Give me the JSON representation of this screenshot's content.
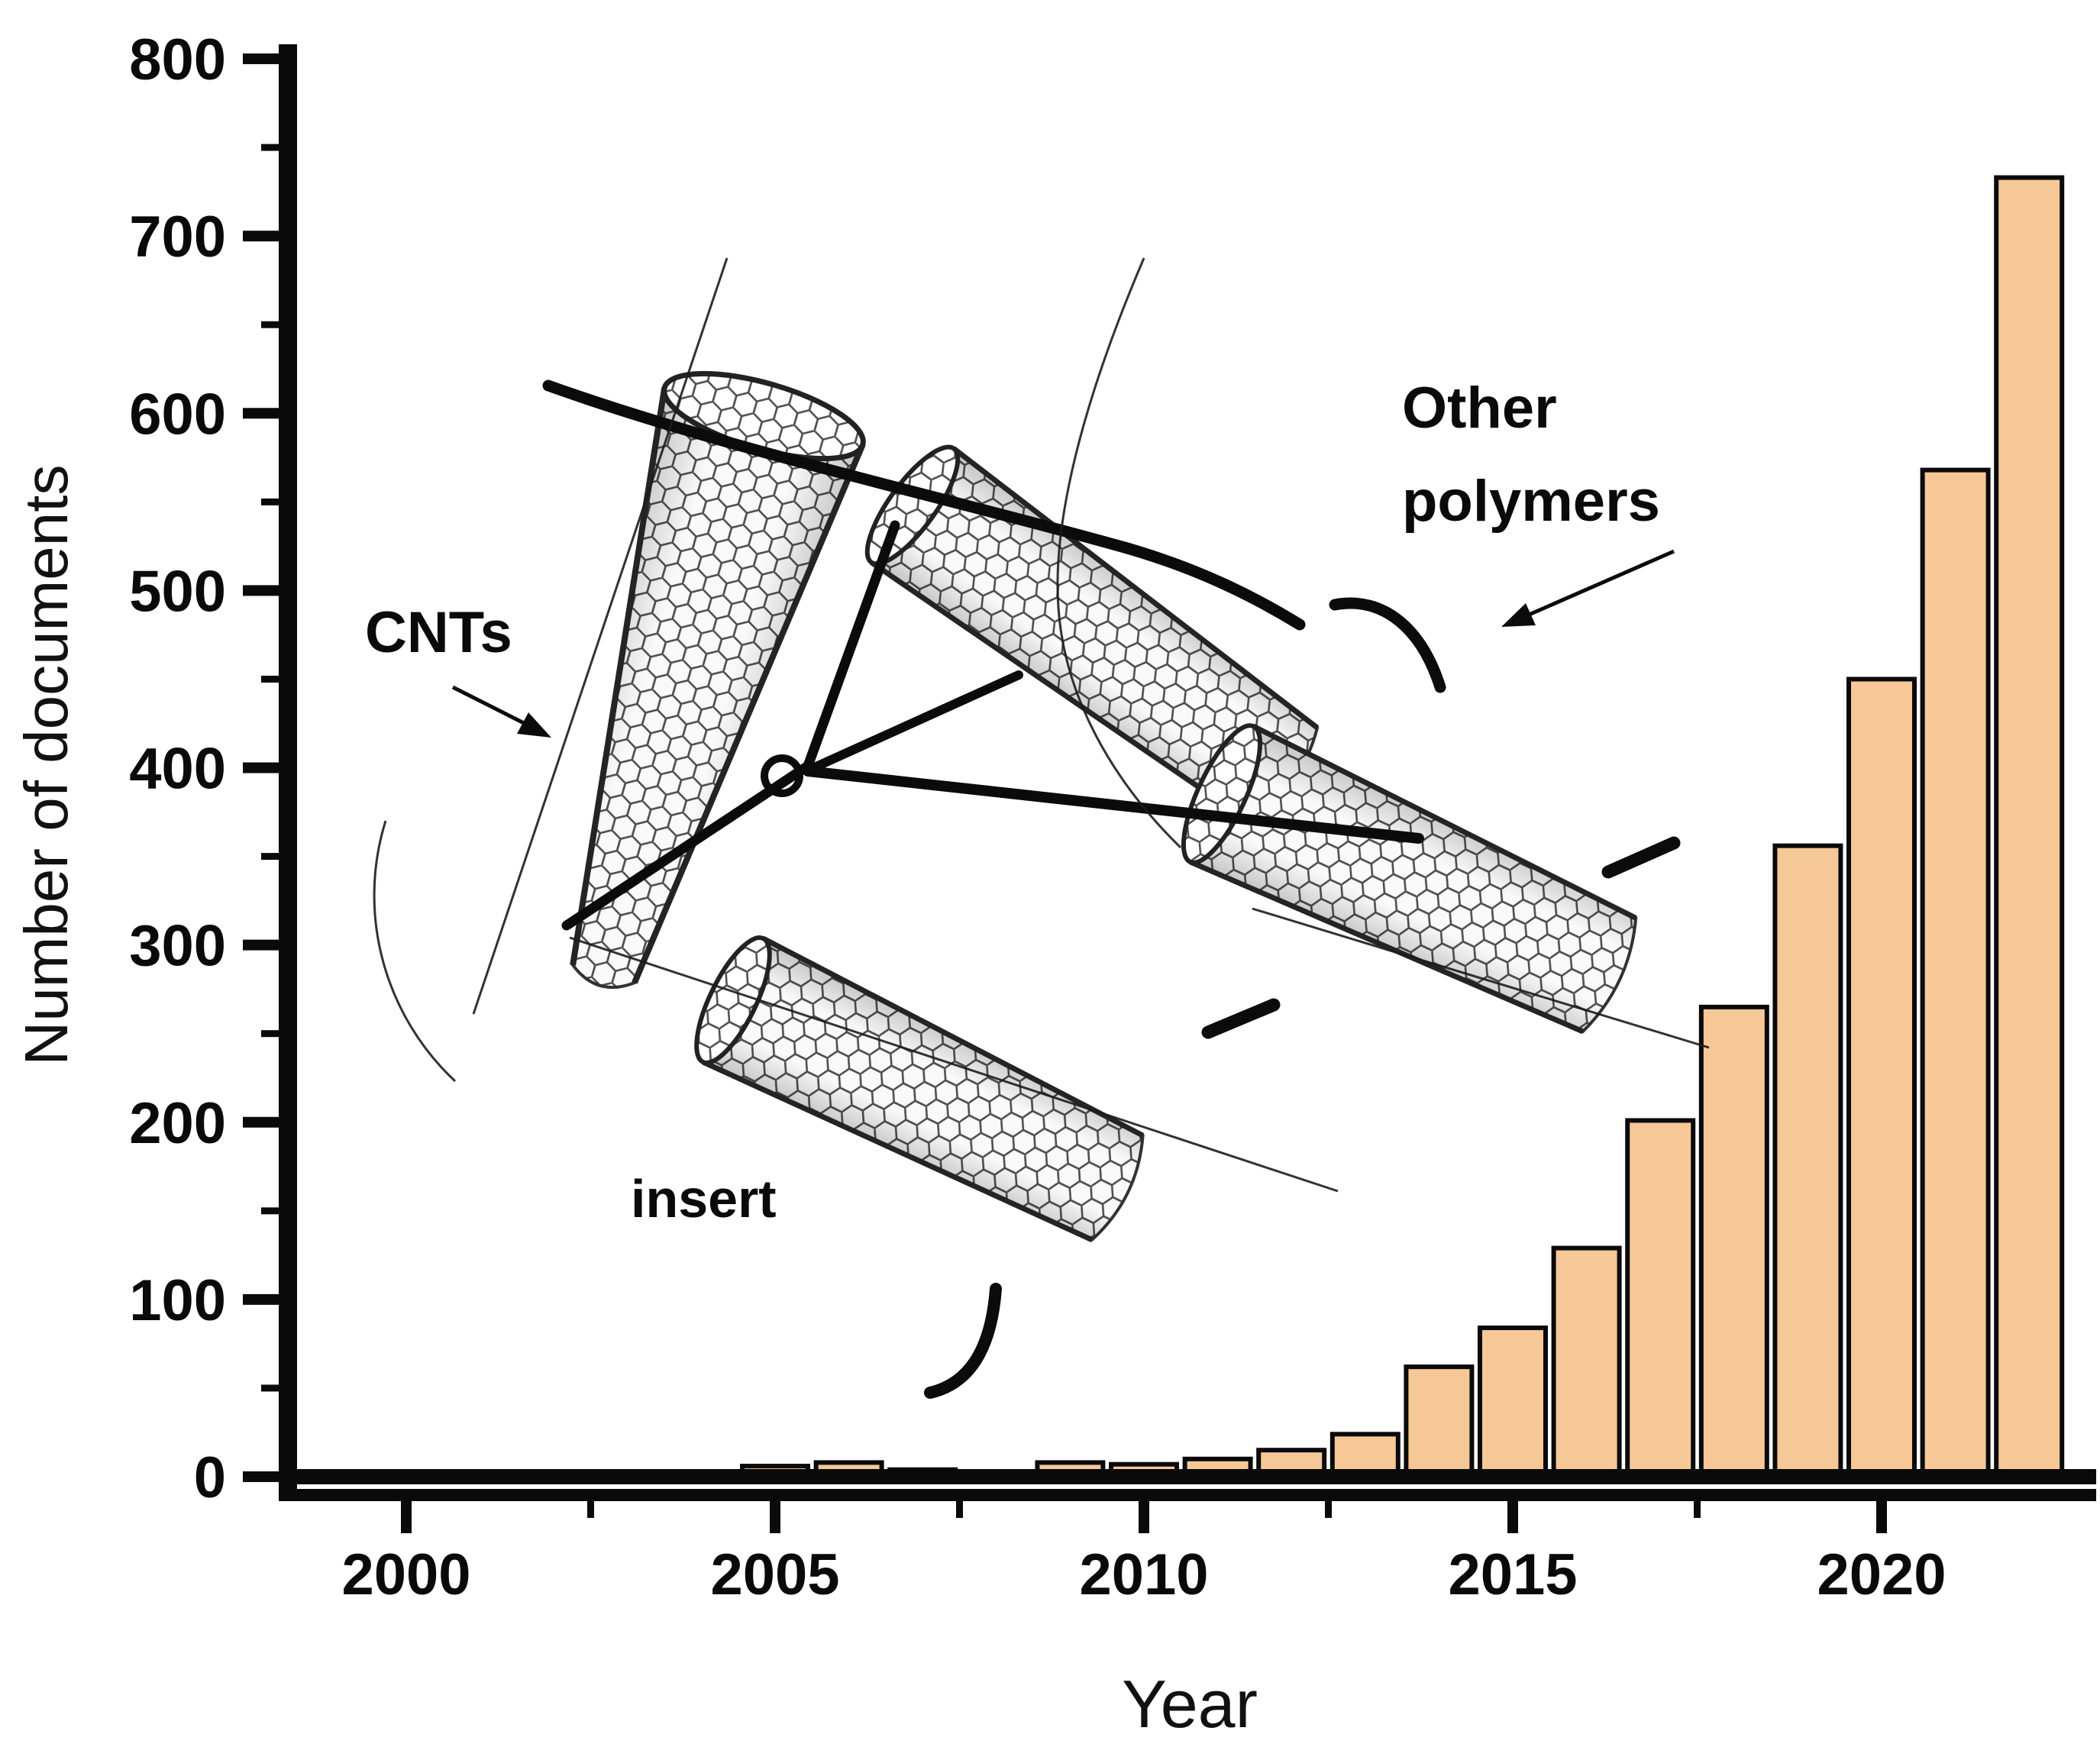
{
  "axis": {
    "x_title": "Year",
    "y_title": "Number of documents"
  },
  "annotations": {
    "cnts": "CNTs",
    "other_polymers_line1": "Other",
    "other_polymers_line2": "polymers",
    "insert": "insert"
  },
  "chart_data": {
    "type": "bar",
    "title": "",
    "xlabel": "Year",
    "ylabel": "Number of documents",
    "categories": [
      2003,
      2004,
      2005,
      2006,
      2007,
      2008,
      2009,
      2010,
      2011,
      2012,
      2013,
      2014,
      2015,
      2016,
      2017,
      2018,
      2019,
      2020,
      2021,
      2022
    ],
    "values": [
      3,
      3,
      6,
      8,
      4,
      0,
      8,
      7,
      10,
      15,
      24,
      62,
      84,
      129,
      201,
      265,
      356,
      450,
      568,
      733
    ],
    "xlim": [
      1998.4,
      2023
    ],
    "ylim": [
      0,
      800
    ],
    "x_major_ticks": [
      2000,
      2005,
      2010,
      2015,
      2020
    ],
    "x_minor_ticks": [
      2002.5,
      2007.5,
      2012.5,
      2017.5
    ],
    "y_major_tick_step": 100,
    "y_minor_tick_step": 50,
    "grid": false,
    "legend_position": "none",
    "bar_color": "#F6C897",
    "bar_edge_color": "#0a0a0a",
    "annotation_texts": [
      "CNTs",
      "Other polymers",
      "insert"
    ]
  }
}
